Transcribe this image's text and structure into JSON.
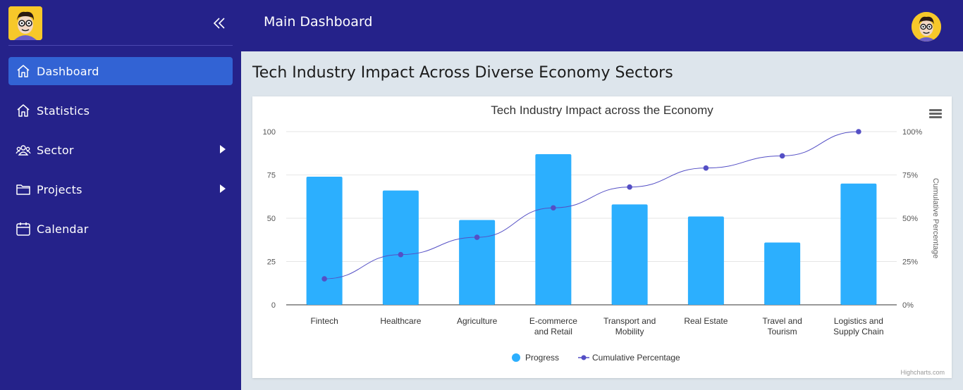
{
  "sidebar": {
    "items": [
      {
        "label": "Dashboard",
        "icon": "home-icon",
        "active": true
      },
      {
        "label": "Statistics",
        "icon": "home-icon",
        "active": false
      },
      {
        "label": "Sector",
        "icon": "users-icon",
        "active": false,
        "has_arrow": true
      },
      {
        "label": "Projects",
        "icon": "folder-icon",
        "active": false,
        "has_arrow": true
      },
      {
        "label": "Calendar",
        "icon": "calendar-icon",
        "active": false
      }
    ]
  },
  "header": {
    "title": "Main Dashboard"
  },
  "page": {
    "title": "Tech Industry Impact Across Diverse Economy Sectors"
  },
  "colors": {
    "sidebar_bg": "#25228a",
    "active_item": "#3263d4",
    "bar": "#2caffe",
    "line": "#544fc5"
  },
  "chart_data": {
    "type": "bar",
    "title": "Tech Industry Impact across the Economy",
    "categories": [
      "Fintech",
      "Healthcare",
      "Agriculture",
      "E-commerce and Retail",
      "Transport and Mobility",
      "Real Estate",
      "Travel and Tourism",
      "Logistics and Supply Chain"
    ],
    "series": [
      {
        "name": "Progress",
        "type": "bar",
        "values": [
          74,
          66,
          49,
          87,
          58,
          51,
          36,
          70
        ]
      },
      {
        "name": "Cumulative Percentage",
        "type": "line",
        "values": [
          15,
          29,
          39,
          56,
          68,
          79,
          86,
          100
        ]
      }
    ],
    "y_left": {
      "ticks": [
        "0",
        "25",
        "50",
        "75",
        "100"
      ],
      "min": 0,
      "max": 100
    },
    "y_right": {
      "label": "Cumulative Percentage",
      "ticks": [
        "0%",
        "25%",
        "50%",
        "75%",
        "100%"
      ],
      "min": 0,
      "max": 100
    },
    "legend": [
      "Progress",
      "Cumulative Percentage"
    ],
    "legend_position": "bottom",
    "credits": "Highcharts.com",
    "grid": true
  }
}
